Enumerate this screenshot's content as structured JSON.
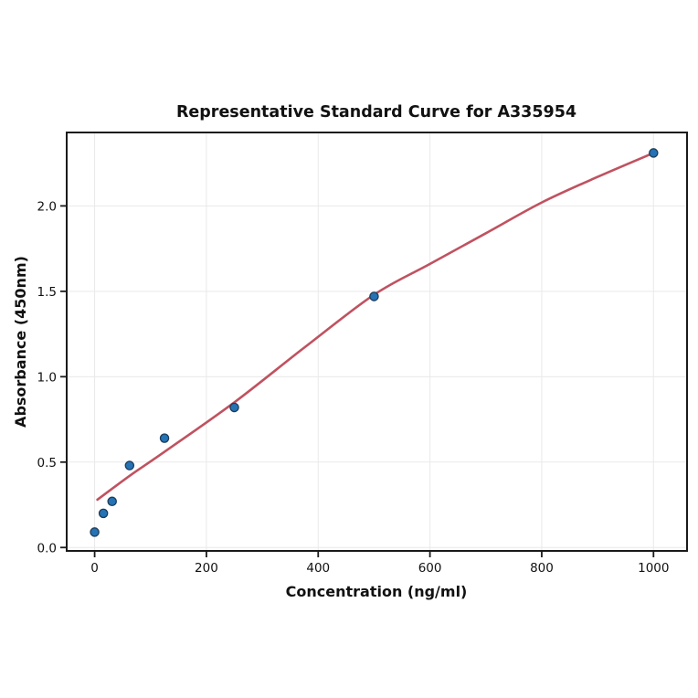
{
  "chart_data": {
    "type": "scatter",
    "title": "Representative Standard Curve for A335954",
    "xlabel": "Concentration (ng/ml)",
    "ylabel": "Absorbance (450nm)",
    "x_ticks": [
      0,
      200,
      400,
      600,
      800,
      1000
    ],
    "x_tick_labels": [
      "0",
      "200",
      "400",
      "600",
      "800",
      "1000"
    ],
    "y_ticks": [
      0.0,
      0.5,
      1.0,
      1.5,
      2.0
    ],
    "y_tick_labels": [
      "0.0",
      "0.5",
      "1.0",
      "1.5",
      "2.0"
    ],
    "xlim": [
      -50,
      1060
    ],
    "ylim": [
      -0.02,
      2.43
    ],
    "grid": true,
    "legend": "none",
    "series": [
      {
        "name": "standard-points",
        "kind": "scatter",
        "x": [
          0,
          15.625,
          31.25,
          62.5,
          125,
          250,
          500,
          1000
        ],
        "y": [
          0.09,
          0.2,
          0.27,
          0.48,
          0.64,
          0.82,
          1.47,
          2.31
        ],
        "marker_fill": "#2572b4",
        "marker_edge": "#1c3c5a"
      },
      {
        "name": "fitted-curve",
        "kind": "line",
        "x": [
          5,
          65,
          125,
          250,
          375,
          500,
          600,
          700,
          800,
          900,
          1000
        ],
        "y": [
          0.28,
          0.425,
          0.56,
          0.85,
          1.17,
          1.48,
          1.66,
          1.84,
          2.02,
          2.17,
          2.31
        ],
        "color": "#c05260"
      }
    ],
    "colors": {
      "grid": "#e9e9e9",
      "spine": "#1a1a1a",
      "background": "#ffffff"
    }
  }
}
